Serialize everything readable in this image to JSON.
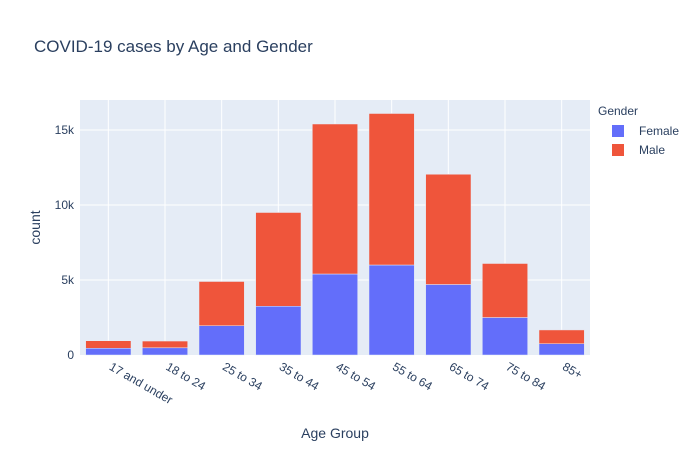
{
  "chart_data": {
    "type": "bar",
    "barmode": "stack",
    "title": "COVID-19 cases by Age and Gender",
    "xlabel": "Age Group",
    "ylabel": "count",
    "categories": [
      "17 and under",
      "18 to 24",
      "25 to 34",
      "35 to 44",
      "45 to 54",
      "55 to 64",
      "65 to 74",
      "75 to 84",
      "85+"
    ],
    "series": [
      {
        "name": "Female",
        "color": "#636efa",
        "values": [
          450,
          480,
          1950,
          3250,
          5400,
          6000,
          4700,
          2500,
          750
        ]
      },
      {
        "name": "Male",
        "color": "#ef553b",
        "values": [
          500,
          450,
          2950,
          6250,
          10000,
          10100,
          7350,
          3600,
          920
        ]
      }
    ],
    "ylim": [
      0,
      17000
    ],
    "yticks": [
      0,
      5000,
      10000,
      15000
    ],
    "ytick_labels": [
      "0",
      "5k",
      "10k",
      "15k"
    ],
    "grid": true,
    "plot_bgcolor": "#e5ecf6",
    "legend": {
      "title": "Gender",
      "placement": "right"
    }
  }
}
